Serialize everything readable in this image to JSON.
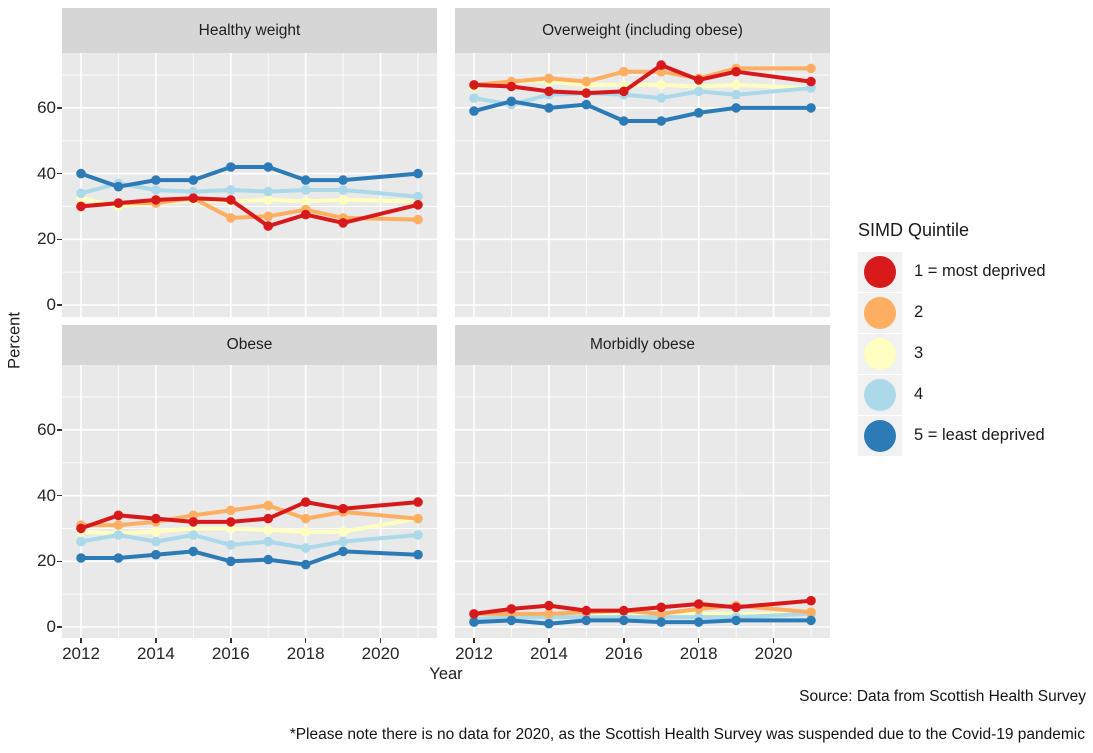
{
  "figure": {
    "y_axis_title": "Percent",
    "x_axis_title": "Year",
    "source": "Source: Data from Scottish Health Survey",
    "footnote": "*Please note there is no data for 2020, as the Scottish Health Survey was suspended due to the Covid-19 pandemic"
  },
  "chart_data": {
    "type": "line",
    "x": [
      2012,
      2013,
      2014,
      2015,
      2016,
      2017,
      2018,
      2019,
      2021
    ],
    "x_range": [
      2011.5,
      2021.5
    ],
    "x_ticks": [
      2012,
      2014,
      2016,
      2018,
      2020
    ],
    "x_minor_ticks": [
      2013,
      2015,
      2017,
      2019,
      2021
    ],
    "y_ticks": [
      0,
      20,
      40,
      60
    ],
    "y_minor_ticks": [
      10,
      30,
      50,
      70
    ],
    "xlabel": "Year",
    "ylabel": "Percent",
    "grid": "white major/minor on grey panel",
    "missing_data_note": "no data for 2020",
    "legend": {
      "title": "SIMD Quintile",
      "position": "right",
      "entries": [
        {
          "label": "1 = most deprived",
          "color": "#d7191c"
        },
        {
          "label": "2",
          "color": "#fdae61"
        },
        {
          "label": "3",
          "color": "#ffffbf"
        },
        {
          "label": "4",
          "color": "#abd9e9"
        },
        {
          "label": "5 = least deprived",
          "color": "#2c7bb6"
        }
      ]
    },
    "facets": [
      {
        "title": "Healthy weight",
        "series": [
          {
            "name": "1 = most deprived",
            "values": [
              30,
              31,
              32,
              32.5,
              32,
              24,
              27.5,
              25,
              30.5
            ]
          },
          {
            "name": "2",
            "values": [
              30,
              31,
              31,
              32.5,
              26.5,
              27,
              29,
              26.5,
              26
            ]
          },
          {
            "name": "3",
            "values": [
              32.5,
              30,
              31,
              32,
              31.5,
              32,
              31.5,
              32,
              31.5
            ]
          },
          {
            "name": "4",
            "values": [
              34,
              37,
              35,
              34.5,
              35,
              34.5,
              35,
              35,
              33
            ]
          },
          {
            "name": "5 = least deprived",
            "values": [
              40,
              36,
              38,
              38,
              42,
              42,
              38,
              38,
              40
            ]
          }
        ]
      },
      {
        "title": "Overweight (including obese)",
        "series": [
          {
            "name": "1 = most deprived",
            "values": [
              67,
              66.5,
              65,
              64.5,
              65,
              73,
              68.5,
              71,
              68
            ]
          },
          {
            "name": "2",
            "values": [
              67,
              68,
              69,
              68,
              71,
              71,
              69,
              72,
              72
            ]
          },
          {
            "name": "3",
            "values": [
              66,
              68,
              68,
              67,
              67,
              67,
              66.5,
              67,
              66
            ]
          },
          {
            "name": "4",
            "values": [
              63,
              61,
              64,
              64.5,
              64,
              63,
              65,
              64,
              66
            ]
          },
          {
            "name": "5 = least deprived",
            "values": [
              59,
              62,
              60,
              61,
              56,
              56,
              58.5,
              60,
              60
            ]
          }
        ]
      },
      {
        "title": "Obese",
        "series": [
          {
            "name": "1 = most deprived",
            "values": [
              30,
              34,
              33,
              32,
              32,
              33,
              38,
              36,
              38
            ]
          },
          {
            "name": "2",
            "values": [
              31,
              31,
              32,
              34,
              35.5,
              37,
              33,
              35,
              33
            ]
          },
          {
            "name": "3",
            "values": [
              29,
              28.5,
              29,
              30,
              30,
              29.5,
              29,
              29,
              33
            ]
          },
          {
            "name": "4",
            "values": [
              26,
              28,
              26,
              28,
              25,
              26,
              24,
              26,
              28
            ]
          },
          {
            "name": "5 = least deprived",
            "values": [
              21,
              21,
              22,
              23,
              20,
              20.5,
              19,
              23,
              22
            ]
          }
        ]
      },
      {
        "title": "Morbidly obese",
        "series": [
          {
            "name": "1 = most deprived",
            "values": [
              4,
              5.5,
              6.5,
              5,
              5,
              6,
              7,
              6,
              8
            ]
          },
          {
            "name": "2",
            "values": [
              4,
              4,
              4,
              4.5,
              5,
              4,
              5.5,
              6.5,
              4.5
            ]
          },
          {
            "name": "3",
            "values": [
              3.5,
              3.5,
              3.5,
              4,
              4,
              3.5,
              4,
              4,
              4
            ]
          },
          {
            "name": "4",
            "values": [
              2.5,
              3,
              3,
              3,
              3,
              3,
              3,
              3,
              4
            ]
          },
          {
            "name": "5 = least deprived",
            "values": [
              1.5,
              2,
              1,
              2,
              2,
              1.5,
              1.5,
              2,
              2
            ]
          }
        ]
      }
    ]
  },
  "colors": {
    "panel_bg": "#e9e9e9",
    "strip_bg": "#d6d6d6",
    "grid": "#ffffff",
    "tick_text": "#262626"
  }
}
